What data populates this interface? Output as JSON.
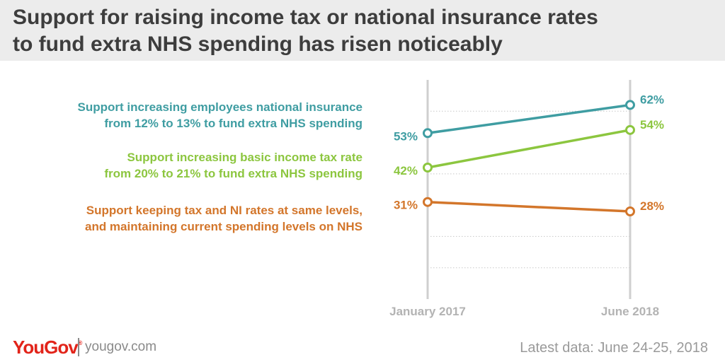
{
  "title": {
    "line1": "Support for raising income tax or national insurance rates",
    "line2": "to fund extra NHS spending has risen noticeably"
  },
  "footer": {
    "brand": "YouGov",
    "brand_mark": "®",
    "site": "yougov.com",
    "date_note": "Latest data: June 24-25, 2018"
  },
  "colors": {
    "ni": "#3f9da2",
    "income_tax": "#8cc63f",
    "keep": "#d3762b",
    "axis": "#cfcfcf",
    "grid": "#c8c8c8",
    "header_bg": "#ececec"
  },
  "chart_data": {
    "type": "line",
    "x": [
      "January 2017",
      "June 2018"
    ],
    "ylim": [
      0,
      70
    ],
    "grid": true,
    "legend_position": "left",
    "series": [
      {
        "key": "ni",
        "label_lines": [
          "Support increasing employees national insurance",
          "from 12% to 13% to fund extra NHS spending"
        ],
        "values": [
          53,
          62
        ],
        "value_labels": [
          "53%",
          "62%"
        ],
        "color": "#3f9da2"
      },
      {
        "key": "income_tax",
        "label_lines": [
          "Support increasing basic income tax rate",
          "from 20% to 21% to fund extra NHS spending"
        ],
        "values": [
          42,
          54
        ],
        "value_labels": [
          "42%",
          "54%"
        ],
        "color": "#8cc63f"
      },
      {
        "key": "keep",
        "label_lines": [
          "Support keeping tax and NI rates at same levels,",
          "and maintaining current spending levels on NHS"
        ],
        "values": [
          31,
          28
        ],
        "value_labels": [
          "31%",
          "28%"
        ],
        "color": "#d3762b"
      }
    ]
  }
}
